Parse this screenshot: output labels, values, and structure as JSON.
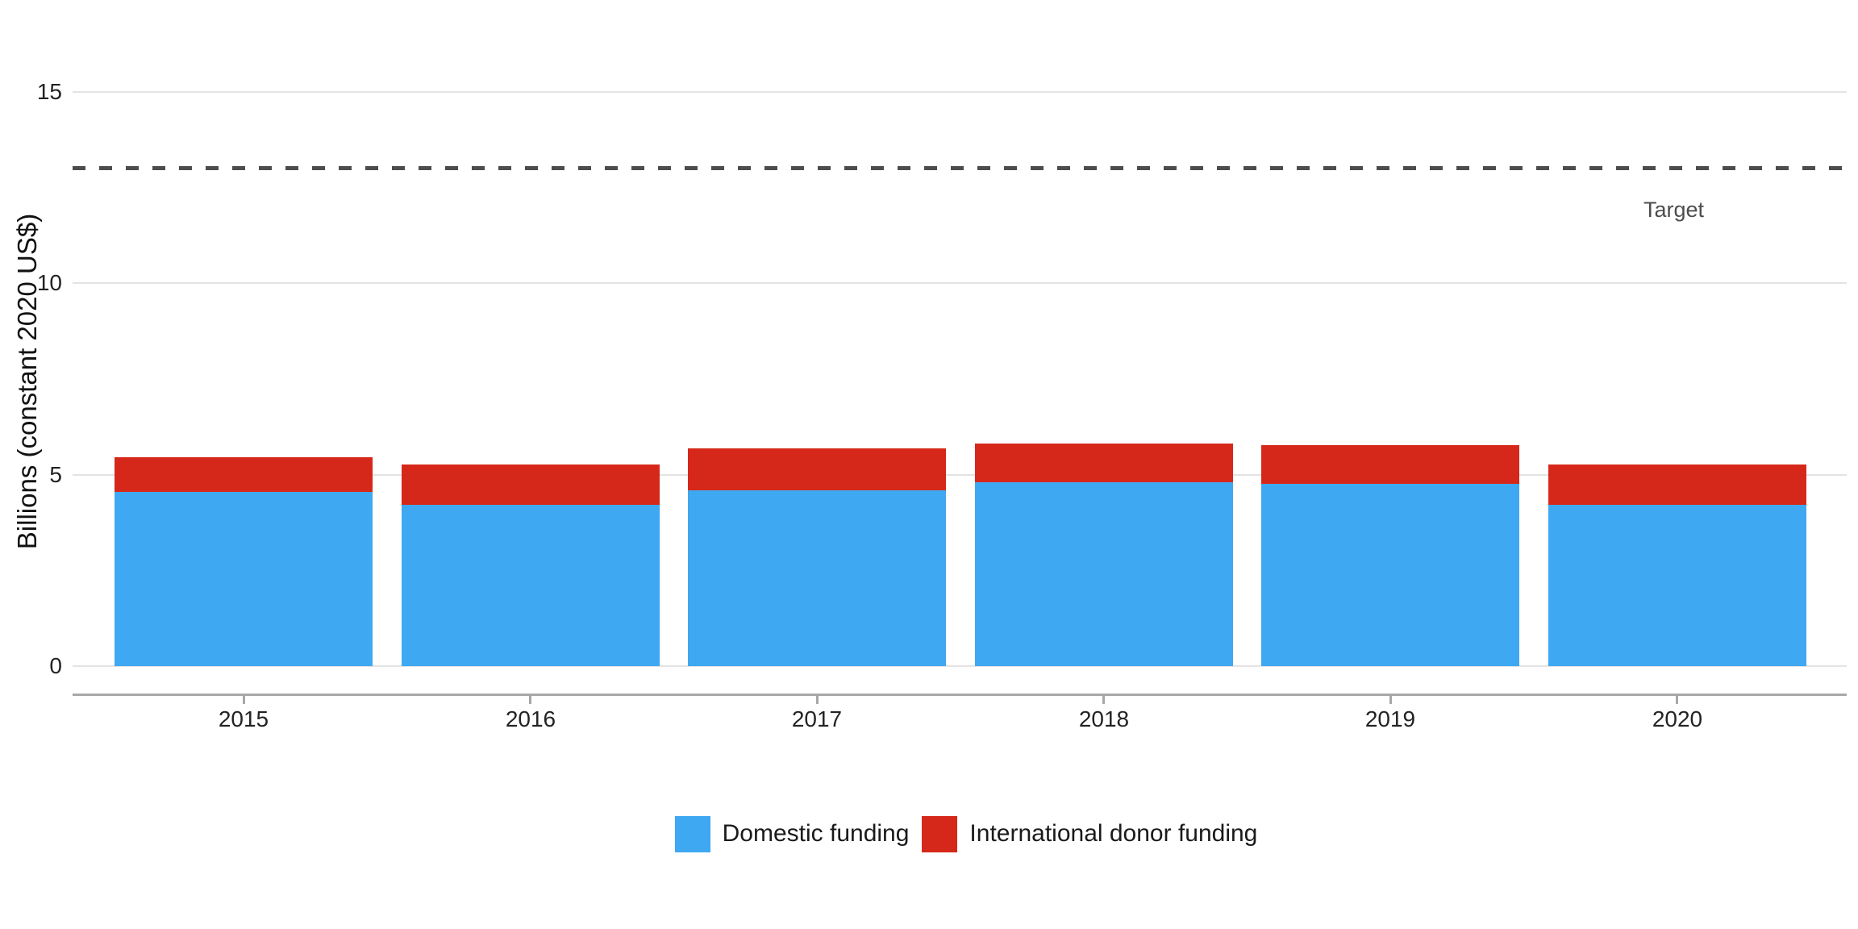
{
  "chart_data": {
    "type": "bar",
    "stacked": true,
    "title": "",
    "xlabel": "",
    "ylabel": "Billions (constant 2020 US$)",
    "categories": [
      "2015",
      "2016",
      "2017",
      "2018",
      "2019",
      "2020"
    ],
    "series": [
      {
        "name": "Domestic funding",
        "color": "#3fa8f2",
        "values": [
          4.55,
          4.2,
          4.6,
          4.8,
          4.75,
          4.2
        ]
      },
      {
        "name": "International donor funding",
        "color": "#d5281b",
        "values": [
          0.9,
          1.05,
          1.1,
          1.0,
          1.0,
          1.05
        ]
      }
    ],
    "yticks": [
      0,
      5,
      10,
      15
    ],
    "ylim": [
      0,
      15.7
    ],
    "grid": "horizontal",
    "legend_position": "bottom",
    "target_line": {
      "value": 13,
      "label": "Target",
      "style": "dashed",
      "color": "#4d4d4d"
    }
  },
  "colors": {
    "background": "#ffffff",
    "gridline": "#e3e3e3",
    "axis_line": "#a8a8a8",
    "tick_label": "#232323",
    "target": "#4d4d4d"
  }
}
